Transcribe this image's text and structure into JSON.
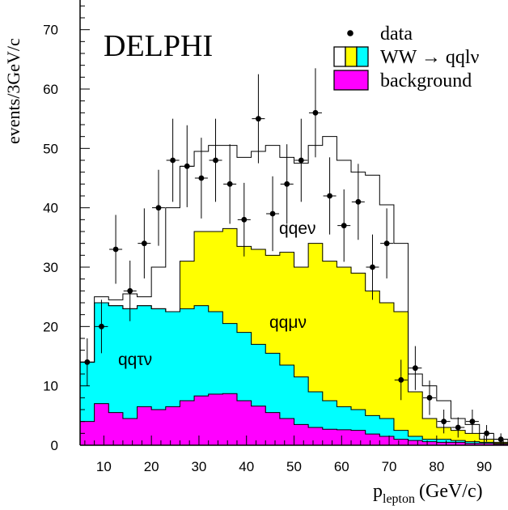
{
  "chart_data": {
    "type": "histogram",
    "experiment_label": "DELPHI",
    "xlabel_main": "p",
    "xlabel_sub": "lepton",
    "xlabel_unit": "(GeV/c)",
    "ylabel": "events/3GeV/c",
    "xlim": [
      5,
      95
    ],
    "ylim": [
      0,
      75
    ],
    "bin_width": 3,
    "x_ticks": [
      10,
      20,
      30,
      40,
      50,
      60,
      70,
      80,
      90
    ],
    "y_ticks": [
      0,
      10,
      20,
      30,
      40,
      50,
      60,
      70
    ],
    "legend": {
      "data_label": "data",
      "signal_label": "WW → qqlν",
      "background_label": "background",
      "placement": "top-right"
    },
    "annotations": {
      "e": "qqeν",
      "mu": "qqμν",
      "tau": "qqτν"
    },
    "colors": {
      "background": "#ff00ff",
      "tau": "#00ffff",
      "mu": "#ffff00",
      "e": "#ffffff"
    },
    "bin_edges": [
      5,
      8,
      11,
      14,
      17,
      20,
      23,
      26,
      29,
      32,
      35,
      38,
      41,
      44,
      47,
      50,
      53,
      56,
      59,
      62,
      65,
      68,
      71,
      74,
      77,
      80,
      83,
      86,
      89,
      92,
      95
    ],
    "stack": {
      "background": [
        4,
        7,
        5.5,
        4.5,
        6.5,
        6,
        6.5,
        7.5,
        8.3,
        8.6,
        8.7,
        7.5,
        6.6,
        5.5,
        4.5,
        3.5,
        3,
        2.7,
        2.6,
        2.5,
        1.9,
        1.5,
        1,
        0.8,
        0.6,
        0.5,
        0.5,
        0.3,
        0.3,
        0.2
      ],
      "tau": [
        14,
        24,
        23.5,
        23,
        23.5,
        23,
        22.5,
        23,
        23.5,
        22.5,
        20.5,
        19,
        17,
        15.5,
        13.5,
        11.5,
        9,
        7.5,
        6.5,
        6,
        5,
        4.5,
        2.5,
        1.5,
        1,
        1,
        0.8,
        0.6,
        0.5,
        0.3
      ],
      "mu": [
        14,
        24,
        23.5,
        23,
        23.5,
        23,
        22.5,
        31,
        36,
        36,
        36.5,
        33.5,
        33,
        32,
        32.5,
        30,
        34,
        31,
        30,
        29,
        26,
        24,
        22.5,
        9,
        4.5,
        3,
        2.5,
        2,
        1,
        0.5
      ],
      "total": [
        14,
        25,
        24.5,
        25.5,
        25,
        30,
        40,
        47,
        49.5,
        50.5,
        50.5,
        48.5,
        49.5,
        50.5,
        48.5,
        47.5,
        50.5,
        52,
        48,
        46,
        45.5,
        40.5,
        34,
        12,
        10,
        7.5,
        4.5,
        3.5,
        2,
        1
      ]
    },
    "data_points": [
      {
        "x": 6.5,
        "y": 14,
        "err": 4
      },
      {
        "x": 9.5,
        "y": 20,
        "err": 4.5
      },
      {
        "x": 12.5,
        "y": 33,
        "err": 5.8
      },
      {
        "x": 15.5,
        "y": 26,
        "err": 5.1
      },
      {
        "x": 18.5,
        "y": 34,
        "err": 5.9
      },
      {
        "x": 21.5,
        "y": 40,
        "err": 6.4
      },
      {
        "x": 24.5,
        "y": 48,
        "err": 7
      },
      {
        "x": 27.5,
        "y": 47,
        "err": 6.9
      },
      {
        "x": 30.5,
        "y": 45,
        "err": 6.8
      },
      {
        "x": 33.5,
        "y": 48,
        "err": 7
      },
      {
        "x": 36.5,
        "y": 44,
        "err": 6.7
      },
      {
        "x": 39.5,
        "y": 38,
        "err": 6.2
      },
      {
        "x": 42.5,
        "y": 55,
        "err": 7.5
      },
      {
        "x": 45.5,
        "y": 39,
        "err": 6.3
      },
      {
        "x": 48.5,
        "y": 44,
        "err": 6.7
      },
      {
        "x": 51.5,
        "y": 48,
        "err": 7
      },
      {
        "x": 54.5,
        "y": 56,
        "err": 7.5
      },
      {
        "x": 57.5,
        "y": 42,
        "err": 6.5
      },
      {
        "x": 60.5,
        "y": 37,
        "err": 6.1
      },
      {
        "x": 63.5,
        "y": 41,
        "err": 6.4
      },
      {
        "x": 66.5,
        "y": 30,
        "err": 5.5
      },
      {
        "x": 69.5,
        "y": 34,
        "err": 5.9
      },
      {
        "x": 72.5,
        "y": 11,
        "err": 3.4
      },
      {
        "x": 75.5,
        "y": 13,
        "err": 3.7
      },
      {
        "x": 78.5,
        "y": 8,
        "err": 2.9
      },
      {
        "x": 81.5,
        "y": 4,
        "err": 2
      },
      {
        "x": 84.5,
        "y": 3,
        "err": 1.7
      },
      {
        "x": 87.5,
        "y": 4,
        "err": 2
      },
      {
        "x": 90.5,
        "y": 2,
        "err": 1.4
      },
      {
        "x": 93.5,
        "y": 1,
        "err": 1
      }
    ]
  }
}
